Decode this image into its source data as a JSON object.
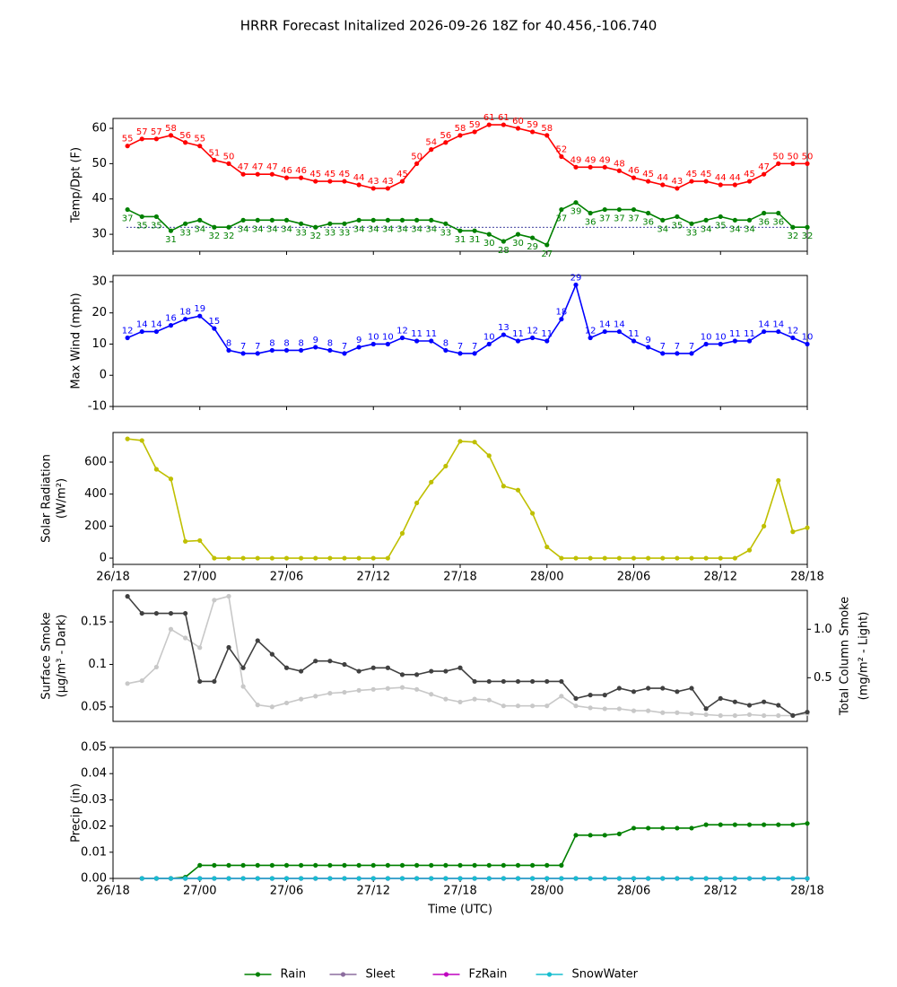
{
  "title": "HRRR Forecast Initalized 2026-09-26 18Z for 40.456,-106.740",
  "chart_data": [
    {
      "type": "line",
      "ylabel": [
        "Temp/Dpt (F)"
      ],
      "xlim": [
        0,
        48
      ],
      "xticks": [
        0,
        6,
        12,
        18,
        24,
        30,
        36,
        42,
        48
      ],
      "ylim": [
        25.2,
        62.8
      ],
      "yticks": [
        30,
        40,
        50,
        60
      ],
      "hline": 32,
      "x": [
        1,
        2,
        3,
        4,
        5,
        6,
        7,
        8,
        9,
        10,
        11,
        12,
        13,
        14,
        15,
        16,
        17,
        18,
        19,
        20,
        21,
        22,
        23,
        24,
        25,
        26,
        27,
        28,
        29,
        30,
        31,
        32,
        33,
        34,
        35,
        36,
        37,
        38,
        39,
        40,
        41,
        42,
        43,
        44,
        45,
        46,
        47,
        48
      ],
      "series": [
        {
          "color": "#ff0000",
          "label_pos": "above",
          "values": [
            55,
            57,
            57,
            58,
            56,
            55,
            51,
            50,
            47,
            47,
            47,
            46,
            46,
            45,
            45,
            45,
            44,
            43,
            43,
            45,
            50,
            54,
            56,
            58,
            59,
            61,
            61,
            60,
            59,
            58,
            52,
            49,
            49,
            49,
            48,
            46,
            45,
            44,
            43,
            45,
            45,
            44,
            44,
            45,
            47,
            50,
            50,
            50
          ]
        },
        {
          "color": "#008000",
          "label_pos": "below",
          "values": [
            37,
            35,
            35,
            31,
            33,
            34,
            32,
            32,
            34,
            34,
            34,
            34,
            33,
            32,
            33,
            33,
            34,
            34,
            34,
            34,
            34,
            34,
            33,
            31,
            31,
            30,
            28,
            30,
            29,
            27,
            37,
            39,
            36,
            37,
            37,
            37,
            36,
            34,
            35,
            33,
            34,
            35,
            34,
            34,
            36,
            36,
            32,
            32
          ]
        }
      ]
    },
    {
      "type": "line",
      "ylabel": [
        "Max Wind (mph)"
      ],
      "xlim": [
        0,
        48
      ],
      "xticks": [
        0,
        6,
        12,
        18,
        24,
        30,
        36,
        42,
        48
      ],
      "ylim": [
        -10,
        32
      ],
      "yticks": [
        -10,
        0,
        10,
        20,
        30
      ],
      "x": [
        1,
        2,
        3,
        4,
        5,
        6,
        7,
        8,
        9,
        10,
        11,
        12,
        13,
        14,
        15,
        16,
        17,
        18,
        19,
        20,
        21,
        22,
        23,
        24,
        25,
        26,
        27,
        28,
        29,
        30,
        31,
        32,
        33,
        34,
        35,
        36,
        37,
        38,
        39,
        40,
        41,
        42,
        43,
        44,
        45,
        46,
        47,
        48
      ],
      "series": [
        {
          "color": "#0000ff",
          "label_pos": "above",
          "values": [
            12,
            14,
            14,
            16,
            18,
            19,
            15,
            8,
            7,
            7,
            8,
            8,
            8,
            9,
            8,
            7,
            9,
            10,
            10,
            12,
            11,
            11,
            8,
            7,
            7,
            10,
            13,
            11,
            12,
            11,
            18,
            29,
            12,
            14,
            14,
            11,
            9,
            7,
            7,
            7,
            10,
            10,
            11,
            11,
            14,
            14,
            12,
            10
          ]
        }
      ]
    },
    {
      "type": "line",
      "ylabel": [
        "Solar Radiation",
        "(W/m²)"
      ],
      "xlim": [
        0,
        48
      ],
      "xticks": [
        {
          "value": 0,
          "label": "26/18"
        },
        {
          "value": 6,
          "label": "27/00"
        },
        {
          "value": 12,
          "label": "27/06"
        },
        {
          "value": 18,
          "label": "27/12"
        },
        {
          "value": 24,
          "label": "27/18"
        },
        {
          "value": 30,
          "label": "28/00"
        },
        {
          "value": 36,
          "label": "28/06"
        },
        {
          "value": 42,
          "label": "28/12"
        },
        {
          "value": 48,
          "label": "28/18"
        }
      ],
      "ylim": [
        -39,
        785
      ],
      "yticks": [
        0,
        200,
        400,
        600
      ],
      "x": [
        1,
        2,
        3,
        4,
        5,
        6,
        7,
        8,
        9,
        10,
        11,
        12,
        13,
        14,
        15,
        16,
        17,
        18,
        19,
        20,
        21,
        22,
        23,
        24,
        25,
        26,
        27,
        28,
        29,
        30,
        31,
        32,
        33,
        34,
        35,
        36,
        37,
        38,
        39,
        40,
        41,
        42,
        43,
        44,
        45,
        46,
        47,
        48
      ],
      "series": [
        {
          "color": "#bfbf00",
          "values": [
            745,
            735,
            555,
            495,
            105,
            110,
            0,
            0,
            0,
            0,
            0,
            0,
            0,
            0,
            0,
            0,
            0,
            0,
            0,
            155,
            345,
            475,
            575,
            730,
            725,
            640,
            450,
            425,
            280,
            70,
            0,
            0,
            0,
            0,
            0,
            0,
            0,
            0,
            0,
            0,
            0,
            0,
            0,
            50,
            200,
            485,
            165,
            190
          ]
        }
      ]
    },
    {
      "type": "line",
      "ylabel": [
        "Surface Smoke",
        "(μg/m³ - Dark)"
      ],
      "y2label": [
        "Total Column Smoke",
        "(mg/m² - Light)"
      ],
      "xlim": [
        0,
        48
      ],
      "ylim": [
        0.033,
        0.187
      ],
      "yticks": [
        0.05,
        0.1,
        0.15
      ],
      "y2lim": [
        0.05,
        1.4
      ],
      "y2ticks": [
        0.5,
        {
          "value": 1,
          "label": "1.0"
        }
      ],
      "x": [
        1,
        2,
        3,
        4,
        5,
        6,
        7,
        8,
        9,
        10,
        11,
        12,
        13,
        14,
        15,
        16,
        17,
        18,
        19,
        20,
        21,
        22,
        23,
        24,
        25,
        26,
        27,
        28,
        29,
        30,
        31,
        32,
        33,
        34,
        35,
        36,
        37,
        38,
        39,
        40,
        41,
        42,
        43,
        44,
        45,
        46,
        47,
        48
      ],
      "series": [
        {
          "color": "#c8c8c8",
          "axis": "y2",
          "values": [
            0.44,
            0.47,
            0.61,
            1.0,
            0.91,
            0.81,
            1.3,
            1.34,
            0.41,
            0.22,
            0.2,
            0.24,
            0.28,
            0.31,
            0.34,
            0.35,
            0.37,
            0.38,
            0.39,
            0.4,
            0.38,
            0.33,
            0.28,
            0.25,
            0.28,
            0.27,
            0.21,
            0.21,
            0.21,
            0.21,
            0.31,
            0.21,
            0.19,
            0.18,
            0.18,
            0.16,
            0.16,
            0.14,
            0.14,
            0.13,
            0.12,
            0.11,
            0.11,
            0.12,
            0.11,
            0.11,
            0.11,
            0.13
          ]
        },
        {
          "color": "#404040",
          "values": [
            0.18,
            0.16,
            0.16,
            0.16,
            0.16,
            0.08,
            0.08,
            0.12,
            0.096,
            0.128,
            0.112,
            0.096,
            0.092,
            0.104,
            0.104,
            0.1,
            0.092,
            0.096,
            0.096,
            0.088,
            0.088,
            0.092,
            0.092,
            0.096,
            0.08,
            0.08,
            0.08,
            0.08,
            0.08,
            0.08,
            0.08,
            0.06,
            0.064,
            0.064,
            0.072,
            0.068,
            0.072,
            0.072,
            0.068,
            0.072,
            0.048,
            0.06,
            0.056,
            0.052,
            0.056,
            0.052,
            0.04,
            0.044
          ]
        }
      ]
    },
    {
      "type": "line",
      "ylabel": [
        "Precip (in)"
      ],
      "xlabel": "Time (UTC)",
      "xlim": [
        0,
        48
      ],
      "legend": "bottom",
      "xticks": [
        {
          "value": 0,
          "label": "26/18"
        },
        {
          "value": 6,
          "label": "27/00"
        },
        {
          "value": 12,
          "label": "27/06"
        },
        {
          "value": 18,
          "label": "27/12"
        },
        {
          "value": 24,
          "label": "27/18"
        },
        {
          "value": 30,
          "label": "28/00"
        },
        {
          "value": 36,
          "label": "28/06"
        },
        {
          "value": 42,
          "label": "28/12"
        },
        {
          "value": 48,
          "label": "28/18"
        }
      ],
      "ylim": [
        0,
        0.05
      ],
      "yticks": [
        {
          "value": 0,
          "label": "0.00"
        },
        {
          "value": 0.01,
          "label": "0.01"
        },
        {
          "value": 0.02,
          "label": "0.02"
        },
        {
          "value": 0.03,
          "label": "0.03"
        },
        {
          "value": 0.04,
          "label": "0.04"
        },
        {
          "value": 0.05,
          "label": "0.05"
        }
      ],
      "x": [
        2,
        3,
        4,
        5,
        6,
        7,
        8,
        9,
        10,
        11,
        12,
        13,
        14,
        15,
        16,
        17,
        18,
        19,
        20,
        21,
        22,
        23,
        24,
        25,
        26,
        27,
        28,
        29,
        30,
        31,
        32,
        33,
        34,
        35,
        36,
        37,
        38,
        39,
        40,
        41,
        42,
        43,
        44,
        45,
        46,
        47,
        48
      ],
      "series": [
        {
          "name": "Rain",
          "color": "#008000",
          "values": [
            0,
            0,
            0,
            0.0005,
            0.005,
            0.005,
            0.005,
            0.005,
            0.005,
            0.005,
            0.005,
            0.005,
            0.005,
            0.005,
            0.005,
            0.005,
            0.005,
            0.005,
            0.005,
            0.005,
            0.005,
            0.005,
            0.005,
            0.005,
            0.005,
            0.005,
            0.005,
            0.005,
            0.005,
            0.005,
            0.0165,
            0.0165,
            0.0165,
            0.017,
            0.0192,
            0.0192,
            0.0192,
            0.0192,
            0.0192,
            0.0205,
            0.0205,
            0.0205,
            0.0205,
            0.0205,
            0.0205,
            0.0205,
            0.021
          ]
        },
        {
          "name": "Sleet",
          "color": "#8c6d9e",
          "values": [
            0,
            0,
            0,
            0,
            0,
            0,
            0,
            0,
            0,
            0,
            0,
            0,
            0,
            0,
            0,
            0,
            0,
            0,
            0,
            0,
            0,
            0,
            0,
            0,
            0,
            0,
            0,
            0,
            0,
            0,
            0,
            0,
            0,
            0,
            0,
            0,
            0,
            0,
            0,
            0,
            0,
            0,
            0,
            0,
            0,
            0,
            0
          ]
        },
        {
          "name": "FzRain",
          "color": "#bf00bf",
          "values": [
            0,
            0,
            0,
            0,
            0,
            0,
            0,
            0,
            0,
            0,
            0,
            0,
            0,
            0,
            0,
            0,
            0,
            0,
            0,
            0,
            0,
            0,
            0,
            0,
            0,
            0,
            0,
            0,
            0,
            0,
            0,
            0,
            0,
            0,
            0,
            0,
            0,
            0,
            0,
            0,
            0,
            0,
            0,
            0,
            0,
            0,
            0
          ]
        },
        {
          "name": "SnowWater",
          "color": "#17becf",
          "values": [
            0,
            0,
            0,
            0,
            0,
            0,
            0,
            0,
            0,
            0,
            0,
            0,
            0,
            0,
            0,
            0,
            0,
            0,
            0,
            0,
            0,
            0,
            0,
            0,
            0,
            0,
            0,
            0,
            0,
            0,
            0,
            0,
            0,
            0,
            0,
            0,
            0,
            0,
            0,
            0,
            0,
            0,
            0,
            0,
            0,
            0,
            0
          ]
        }
      ]
    }
  ]
}
